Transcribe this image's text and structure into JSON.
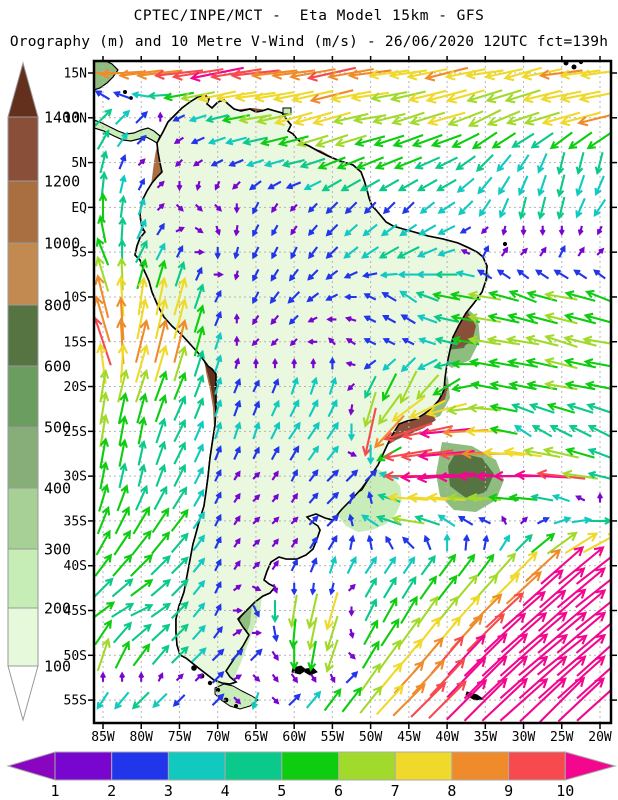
{
  "header": {
    "title_line1": "CPTEC/INPE/MCT -  Eta Model 15km - GFS",
    "title_line2": "Orography (m) and 10 Metre V-Wind (m/s) - 26/06/2020 12UTC fct=139h"
  },
  "map": {
    "lat_labels": [
      "15N",
      "10N",
      "5N",
      "EQ",
      "5S",
      "10S",
      "15S",
      "20S",
      "25S",
      "30S",
      "35S",
      "40S",
      "45S",
      "50S",
      "55S"
    ],
    "lon_labels": [
      "85W",
      "80W",
      "75W",
      "70W",
      "65W",
      "60W",
      "55W",
      "50W",
      "45W",
      "40W",
      "35W",
      "30W",
      "25W",
      "20W"
    ]
  },
  "orography_scale": {
    "unit": "m",
    "tick_labels": [
      "1400",
      "1200",
      "1000",
      "800",
      "600",
      "500",
      "400",
      "300",
      "200",
      "100"
    ],
    "band_colors_top_to_bottom": [
      "#8A4F39",
      "#A96F40",
      "#C28A50",
      "#567442",
      "#6B9C60",
      "#87AE79",
      "#A6D096",
      "#C6EDB6",
      "#E6F9DB"
    ],
    "over_color": "#63301E",
    "under_color": "#FFFFFF"
  },
  "wind_scale": {
    "unit": "m/s",
    "tick_labels": [
      "1",
      "2",
      "3",
      "4",
      "5",
      "6",
      "7",
      "8",
      "9",
      "10"
    ],
    "band_colors": [
      "#7806CE",
      "#2135EA",
      "#11C9BF",
      "#0BC98B",
      "#0ECC10",
      "#A2DA2B",
      "#EFD92B",
      "#F08B2B",
      "#F64A4E"
    ],
    "under_arrow_color": "#8A05C0",
    "over_arrow_color": "#F2078E"
  },
  "wind_field": {
    "lon_start": -85,
    "lon_step": 5,
    "lat_start": 15,
    "lat_step": -5,
    "u": [
      [
        -8,
        -8,
        -9,
        -10,
        -9,
        -8,
        -9,
        -8,
        -7,
        -8,
        -7,
        -7,
        -8,
        -7
      ],
      [
        3,
        2,
        -2,
        -4,
        -6,
        -7,
        -7,
        -6,
        -6,
        -7,
        -6,
        -6,
        -7,
        -8
      ],
      [
        1,
        1,
        -1,
        -2,
        -3,
        -4,
        -5,
        -5,
        -5,
        -4,
        -3,
        -2,
        -1,
        -1
      ],
      [
        0,
        1,
        1,
        1,
        -1,
        -1,
        -2,
        -2,
        -2,
        -3,
        -2,
        -1,
        -1,
        -2
      ],
      [
        -2,
        2,
        1,
        0,
        -1,
        -1,
        -2,
        -3,
        -4,
        -3,
        1,
        1,
        1,
        1
      ],
      [
        -2,
        1,
        2,
        1,
        -1,
        -2,
        -2,
        -2,
        -3,
        -5,
        -6,
        -5,
        -6,
        -5
      ],
      [
        -3,
        2,
        2,
        1,
        -1,
        -1,
        -1,
        -2,
        -2,
        -4,
        -6,
        -6,
        -6,
        -6
      ],
      [
        1,
        2,
        2,
        1,
        1,
        1,
        1,
        -2,
        -3,
        -5,
        -5,
        -5,
        -6,
        -5
      ],
      [
        1,
        1,
        2,
        1,
        1,
        2,
        2,
        -2,
        -9,
        -10,
        -7,
        -3,
        -4,
        -4
      ],
      [
        1,
        1,
        2,
        1,
        1,
        1,
        2,
        2,
        -9,
        -11,
        -10,
        -11,
        -9,
        -4
      ],
      [
        2,
        3,
        3,
        1,
        1,
        1,
        2,
        -3,
        -6,
        -3,
        -2,
        1,
        3,
        4
      ],
      [
        3,
        4,
        3,
        1,
        1,
        1,
        1,
        2,
        2,
        3,
        3,
        5,
        8,
        9
      ],
      [
        4,
        4,
        3,
        1,
        1,
        -1,
        -2,
        2,
        3,
        4,
        6,
        8,
        9,
        10
      ],
      [
        2,
        3,
        3,
        2,
        2,
        0,
        -2,
        3,
        5,
        6,
        8,
        9,
        10,
        10
      ],
      [
        -2,
        -3,
        -2,
        2,
        -1,
        2,
        3,
        4,
        6,
        7,
        8,
        9,
        9,
        10
      ]
    ],
    "v": [
      [
        0,
        -1,
        -1,
        -2,
        -1,
        -1,
        -2,
        -1,
        -1,
        -2,
        -1,
        -2,
        -1,
        -1
      ],
      [
        3,
        2,
        -1,
        -1,
        -1,
        -2,
        -2,
        -1,
        -2,
        -2,
        -3,
        -2,
        -2,
        -2
      ],
      [
        4,
        1,
        -1,
        -1,
        -1,
        -1,
        -2,
        -2,
        -2,
        -2,
        -3,
        -3,
        -4,
        -4
      ],
      [
        5,
        3,
        -1,
        -1,
        -2,
        -1,
        -2,
        -2,
        -2,
        -2,
        -3,
        -4,
        -4,
        -3
      ],
      [
        5,
        4,
        2,
        -2,
        -2,
        -2,
        -2,
        -2,
        -2,
        -1,
        2,
        1,
        2,
        1
      ],
      [
        8,
        7,
        7,
        2,
        -2,
        -2,
        -1,
        1,
        2,
        1,
        1,
        2,
        1,
        2
      ],
      [
        9,
        8,
        8,
        3,
        -1,
        -1,
        1,
        1,
        1,
        1,
        1,
        1,
        2,
        1
      ],
      [
        6,
        6,
        5,
        3,
        2,
        3,
        3,
        -4,
        -6,
        -3,
        1,
        1,
        1,
        1
      ],
      [
        6,
        5,
        4,
        3,
        3,
        3,
        3,
        -9,
        -3,
        -1,
        0,
        2,
        2,
        2
      ],
      [
        5,
        4,
        4,
        2,
        1,
        2,
        2,
        2,
        0,
        -1,
        0,
        0,
        1,
        1
      ],
      [
        5,
        5,
        4,
        2,
        1,
        1,
        2,
        2,
        1,
        2,
        1,
        1,
        1,
        0
      ],
      [
        4,
        4,
        3,
        2,
        1,
        2,
        3,
        3,
        3,
        4,
        4,
        5,
        7,
        7
      ],
      [
        3,
        2,
        3,
        2,
        -2,
        -6,
        -7,
        4,
        5,
        5,
        6,
        7,
        8,
        8
      ],
      [
        6,
        4,
        3,
        2,
        2,
        -5,
        -6,
        5,
        6,
        7,
        8,
        8,
        8,
        9
      ],
      [
        -3,
        -3,
        -2,
        2,
        -3,
        2,
        4,
        5,
        6,
        7,
        8,
        8,
        9,
        9
      ]
    ]
  },
  "land_colors": {
    "lowland": "#EAF8E0",
    "plain_white": "#FFFFFF",
    "light_green": "#C9EDB9",
    "mid_green": "#8FBC7F",
    "dark_green": "#567442",
    "tan": "#C28A50",
    "brown": "#A96F40",
    "dark_brown": "#63301E"
  }
}
